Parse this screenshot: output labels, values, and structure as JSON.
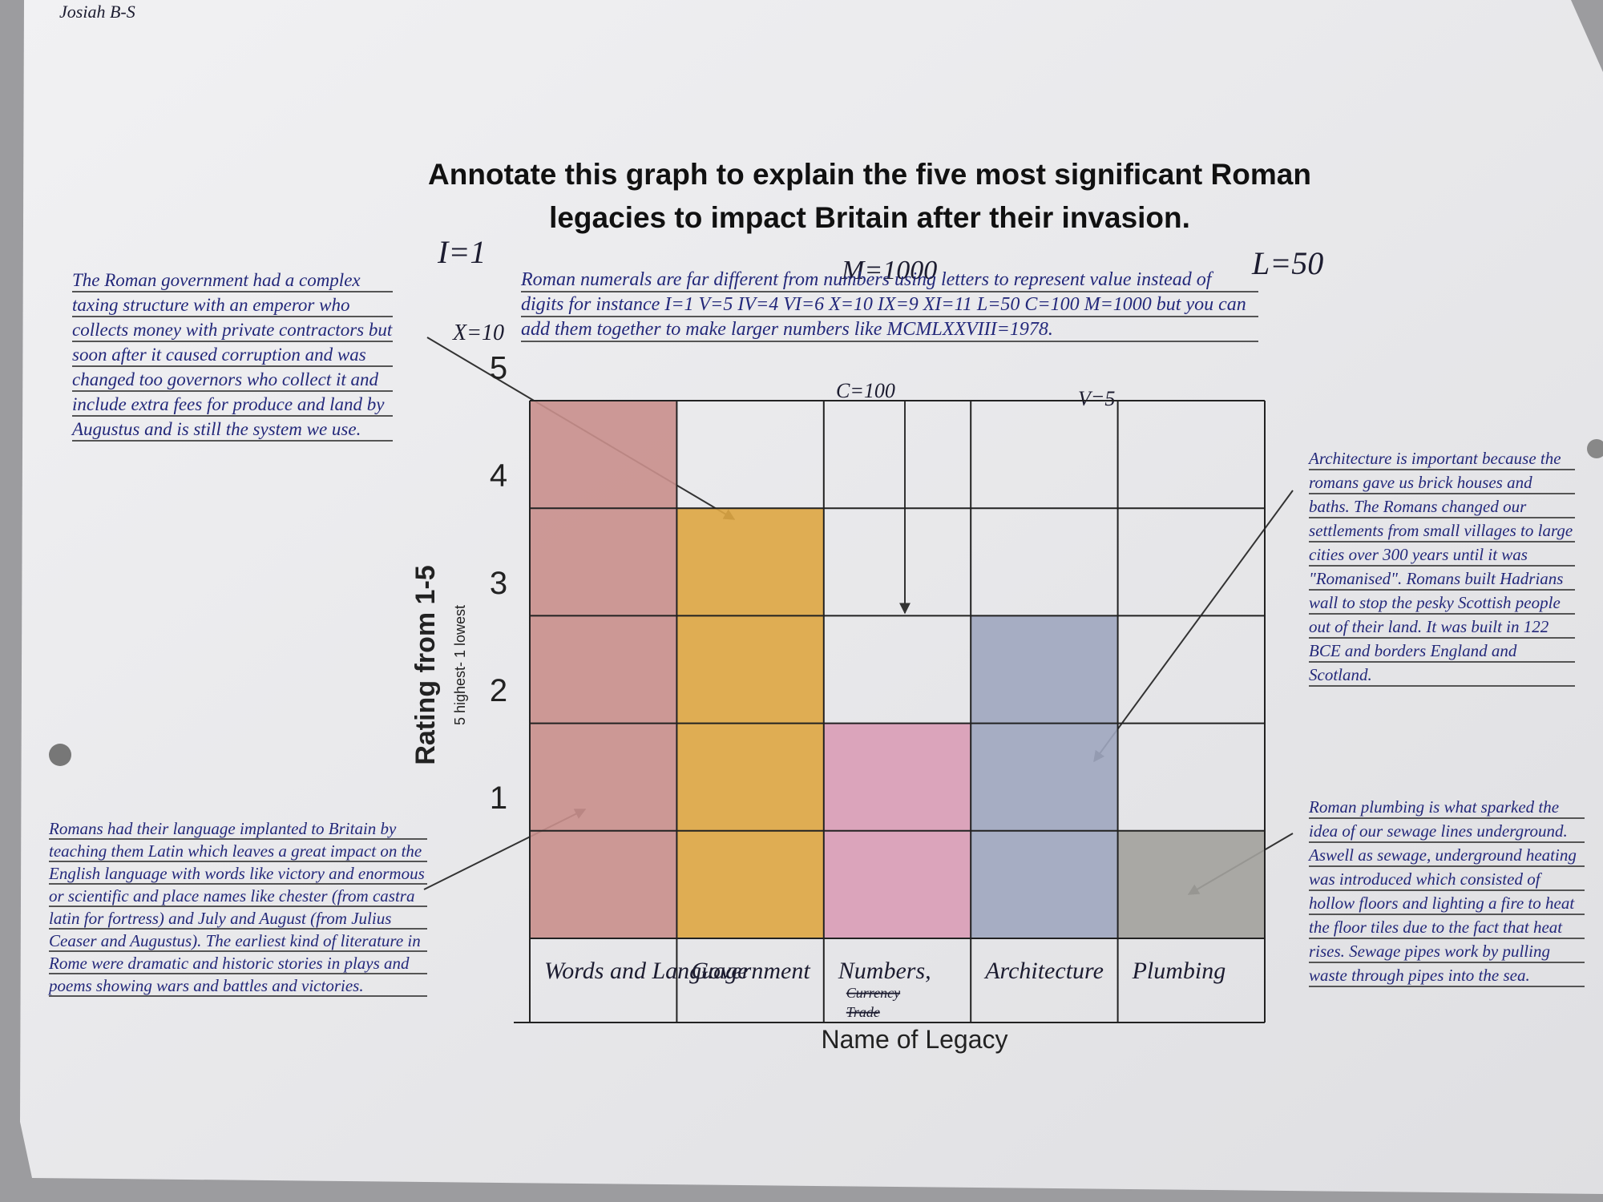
{
  "chart_data": {
    "type": "bar",
    "title": "Annotate this graph to explain the five most significant Roman legacies to impact Britain after their invasion.",
    "x_label": "Name of Legacy",
    "y_label": "Rating from 1-5",
    "y_sublabel": "5 highest- 1 lowest",
    "categories": [
      "Words and Language",
      "Government",
      "Numbers,",
      "Architecture",
      "Plumbing"
    ],
    "values": [
      5,
      4,
      2,
      3,
      1
    ],
    "colors": [
      "#c98f8c",
      "#dea643",
      "#d99cb6",
      "#9ea6bf",
      "#a2a19c"
    ],
    "ylim": [
      0,
      5
    ],
    "yticks": [
      1,
      2,
      3,
      4,
      5
    ],
    "grid": true
  },
  "struck": [
    "Currency",
    "Trade"
  ],
  "name": "Josiah B-S",
  "numeral_notes": [
    "I=1",
    "M=1000",
    "L=50",
    "X=10",
    "C=100",
    "V=5"
  ],
  "annotations": [
    "The Roman government had a complex taxing structure with an emperor who collects money with private contractors but soon after it caused corruption and was changed too governors who collect it and include extra fees for produce and land by Augustus and is still the system we use.",
    "Roman numerals are far different from numbers using letters to represent value instead of digits for instance I=1 V=5 IV=4 VI=6 X=10 IX=9 XI=11 L=50 C=100 M=1000 but you can add them together to make larger numbers like MCMLXXVIII=1978.",
    "Architecture is important because the romans gave us brick houses and baths. The Romans changed our settlements from small villages to large cities over 300 years until it was \"Romanised\". Romans built Hadrians wall to stop the pesky Scottish people out of their land. It was built in 122 BCE and borders England and Scotland.",
    "Romans had their language implanted to Britain by teaching them Latin which leaves a great impact on the English language with words like victory and enormous or scientific and place names like chester (from castra latin for fortress) and July and August (from Julius Ceaser and Augustus). The earliest kind of literature in Rome were dramatic and historic stories in plays and poems showing wars and battles and victories.",
    "Roman plumbing is what sparked the idea of our sewage lines underground. Aswell as sewage, underground heating was introduced which consisted of hollow floors and lighting a fire to heat the floor tiles due to the fact that heat rises. Sewage pipes work by pulling waste through pipes into the sea."
  ]
}
